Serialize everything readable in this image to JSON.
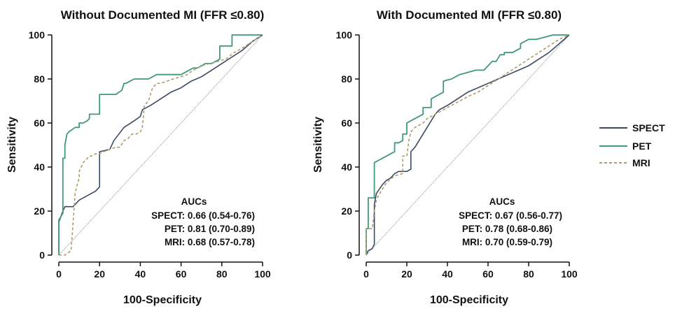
{
  "colors": {
    "spect": "#3b4a63",
    "pet": "#3f9a7a",
    "mri": "#b09a6a",
    "diagonal": "#777777",
    "axis": "#111111"
  },
  "legend": {
    "items": [
      {
        "label": "SPECT",
        "style": "solid",
        "color": "#3b4a63"
      },
      {
        "label": "PET",
        "style": "solid",
        "color": "#3f9a7a"
      },
      {
        "label": "MRI",
        "style": "dashed",
        "color": "#b09a6a"
      }
    ]
  },
  "chart_data": [
    {
      "type": "line",
      "title": "Without Documented MI (FFR ≤0.80)",
      "xlabel": "100-Specificity",
      "ylabel": "Sensitivity",
      "xlim": [
        0,
        100
      ],
      "ylim": [
        0,
        100
      ],
      "xticks": [
        "0",
        "20",
        "40",
        "60",
        "80",
        "100"
      ],
      "yticks": [
        "0",
        "20",
        "40",
        "60",
        "80",
        "100"
      ],
      "grid": false,
      "auc_title": "AUCs",
      "auc_lines": [
        "SPECT: 0.66 (0.54-0.76)",
        "PET: 0.81 (0.70-0.89)",
        "MRI: 0.68 (0.57-0.78)"
      ],
      "series": [
        {
          "name": "SPECT",
          "x": [
            0,
            0,
            2,
            3,
            5,
            7,
            8,
            10,
            14,
            18,
            20,
            20,
            25,
            27,
            32,
            37,
            40,
            41,
            45,
            50,
            55,
            60,
            65,
            70,
            75,
            80,
            85,
            90,
            95,
            100
          ],
          "y": [
            0,
            15,
            20,
            22,
            22,
            22,
            23,
            25,
            27,
            29,
            31,
            47,
            48,
            52,
            58,
            61,
            63,
            66,
            68,
            71,
            74,
            76,
            79,
            81,
            84,
            87,
            90,
            93,
            97,
            100
          ]
        },
        {
          "name": "PET",
          "x": [
            0,
            0,
            2,
            2,
            3,
            3,
            4,
            5,
            8,
            10,
            10,
            12,
            14,
            15,
            15,
            20,
            20,
            24,
            28,
            31,
            32,
            33,
            35,
            37,
            40,
            44,
            48,
            52,
            56,
            60,
            64,
            66,
            68,
            70,
            72,
            75,
            79,
            79,
            85,
            85,
            100
          ],
          "y": [
            0,
            16,
            19,
            44,
            44,
            50,
            55,
            56,
            58,
            58,
            60,
            60,
            61,
            62,
            64,
            64,
            73,
            73,
            73,
            75,
            78,
            78,
            79,
            80,
            80,
            80,
            82,
            82,
            82,
            82,
            84,
            85,
            85,
            86,
            87,
            87,
            89,
            95,
            95,
            100,
            100
          ]
        },
        {
          "name": "MRI",
          "x": [
            0,
            3,
            6,
            7,
            8,
            9,
            10,
            10,
            11,
            12,
            14,
            15,
            16,
            18,
            20,
            22,
            25,
            28,
            30,
            32,
            34,
            36,
            38,
            40,
            41,
            42,
            44,
            46,
            48,
            50,
            53,
            56,
            60,
            63,
            66,
            70,
            74,
            78,
            82,
            86,
            90,
            95,
            100
          ],
          "y": [
            0,
            0,
            2,
            15,
            28,
            32,
            35,
            38,
            40,
            42,
            44,
            45,
            45,
            46,
            46,
            47,
            48,
            49,
            49,
            52,
            53,
            55,
            55,
            56,
            58,
            68,
            70,
            76,
            78,
            78,
            79,
            80,
            81,
            82,
            84,
            86,
            87,
            88,
            89,
            92,
            94,
            97,
            100
          ]
        }
      ]
    },
    {
      "type": "line",
      "title": "With Documented MI (FFR ≤0.80)",
      "xlabel": "100-Specificity",
      "ylabel": "Sensitivity",
      "xlim": [
        0,
        100
      ],
      "ylim": [
        0,
        100
      ],
      "xticks": [
        "0",
        "20",
        "40",
        "60",
        "80",
        "100"
      ],
      "yticks": [
        "0",
        "20",
        "40",
        "60",
        "80",
        "100"
      ],
      "grid": false,
      "auc_title": "AUCs",
      "auc_lines": [
        "SPECT: 0.67 (0.56-0.77)",
        "PET: 0.78 (0.68-0.86)",
        "MRI: 0.70 (0.59-0.79)"
      ],
      "series": [
        {
          "name": "SPECT",
          "x": [
            0,
            1,
            3,
            4,
            4,
            5,
            8,
            10,
            12,
            14,
            16,
            18,
            20,
            22,
            22,
            24,
            26,
            28,
            30,
            32,
            34,
            36,
            40,
            45,
            50,
            55,
            60,
            65,
            70,
            75,
            80,
            85,
            90,
            95,
            100
          ],
          "y": [
            0,
            2,
            3,
            5,
            23,
            28,
            32,
            34,
            35,
            37,
            38,
            38,
            38,
            39,
            47,
            49,
            52,
            55,
            58,
            61,
            64,
            66,
            68,
            71,
            74,
            76,
            78,
            80,
            82,
            84,
            86,
            89,
            92,
            96,
            100
          ]
        },
        {
          "name": "PET",
          "x": [
            0,
            0,
            1,
            1,
            4,
            4,
            6,
            8,
            10,
            12,
            14,
            14,
            16,
            18,
            18,
            20,
            20,
            22,
            24,
            26,
            28,
            28,
            32,
            32,
            34,
            36,
            38,
            38,
            42,
            46,
            50,
            54,
            58,
            60,
            62,
            64,
            66,
            68,
            68,
            72,
            76,
            76,
            80,
            84,
            88,
            92,
            100
          ],
          "y": [
            0,
            12,
            12,
            26,
            26,
            42,
            43,
            44,
            45,
            46,
            47,
            51,
            51,
            52,
            55,
            55,
            60,
            61,
            62,
            63,
            64,
            67,
            67,
            71,
            72,
            73,
            74,
            79,
            80,
            82,
            83,
            84,
            84,
            86,
            88,
            88,
            91,
            91,
            92,
            92,
            94,
            96,
            98,
            98,
            99,
            100,
            100
          ]
        },
        {
          "name": "MRI",
          "x": [
            0,
            0,
            2,
            3,
            4,
            5,
            6,
            8,
            10,
            14,
            18,
            18,
            20,
            21,
            22,
            24,
            26,
            28,
            30,
            34,
            38,
            42,
            46,
            50,
            55,
            60,
            65,
            70,
            75,
            80,
            85,
            90,
            95,
            100
          ],
          "y": [
            0,
            12,
            12,
            12,
            20,
            25,
            27,
            30,
            33,
            36,
            37,
            45,
            45,
            52,
            56,
            58,
            59,
            60,
            62,
            64,
            66,
            68,
            70,
            72,
            74,
            77,
            80,
            83,
            86,
            89,
            92,
            95,
            98,
            100
          ]
        }
      ]
    }
  ]
}
